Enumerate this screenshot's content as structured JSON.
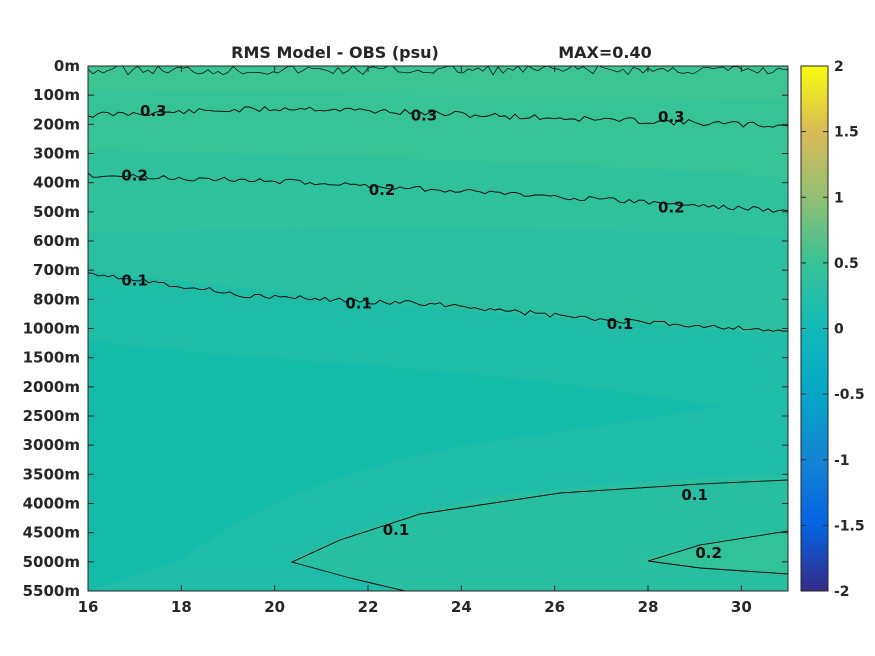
{
  "chart_data": {
    "type": "contour",
    "title": "RMS Model - OBS (psu)",
    "max_label": "MAX=0.40",
    "x_ticks": [
      "16",
      "18",
      "20",
      "22",
      "24",
      "26",
      "28",
      "30"
    ],
    "xlim": [
      16,
      31
    ],
    "y_ticks": [
      "0m",
      "100m",
      "200m",
      "300m",
      "400m",
      "500m",
      "600m",
      "700m",
      "800m",
      "1000m",
      "1500m",
      "2000m",
      "2500m",
      "3000m",
      "3500m",
      "4000m",
      "4500m",
      "5000m",
      "5500m"
    ],
    "colorbar": {
      "ticks": [
        "2",
        "1.5",
        "1",
        "0.5",
        "0",
        "-0.5",
        "-1",
        "-1.5",
        "-2"
      ],
      "range": [
        -2,
        2
      ],
      "colormap": "parula"
    },
    "contours": [
      {
        "level": "0.3",
        "labels": [
          {
            "x": 17.4,
            "depth_index": 1.55
          },
          {
            "x": 23.2,
            "depth_index": 1.7
          },
          {
            "x": 28.5,
            "depth_index": 1.75
          }
        ]
      },
      {
        "level": "0.2",
        "labels": [
          {
            "x": 17.0,
            "depth_index": 3.75
          },
          {
            "x": 22.3,
            "depth_index": 4.25
          },
          {
            "x": 28.5,
            "depth_index": 4.85
          }
        ]
      },
      {
        "level": "0.1",
        "labels": [
          {
            "x": 17.0,
            "depth_index": 7.35
          },
          {
            "x": 21.8,
            "depth_index": 8.15
          },
          {
            "x": 27.4,
            "depth_index": 8.85
          }
        ]
      },
      {
        "level": "0.1",
        "labels": [
          {
            "x": 22.6,
            "depth_index": 15.9
          },
          {
            "x": 29.0,
            "depth_index": 14.7
          }
        ]
      },
      {
        "level": "0.2",
        "labels": [
          {
            "x": 29.3,
            "depth_index": 16.7
          }
        ]
      }
    ]
  }
}
